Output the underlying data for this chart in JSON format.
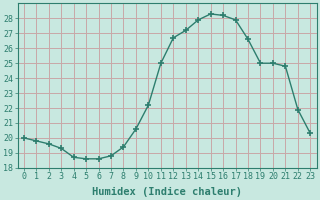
{
  "x": [
    0,
    1,
    2,
    3,
    4,
    5,
    6,
    7,
    8,
    9,
    10,
    11,
    12,
    13,
    14,
    15,
    16,
    17,
    18,
    19,
    20,
    21,
    22,
    23
  ],
  "y": [
    20.0,
    19.8,
    19.6,
    19.3,
    18.7,
    18.6,
    18.6,
    18.8,
    19.4,
    20.6,
    22.2,
    25.0,
    26.7,
    27.2,
    27.9,
    28.3,
    28.2,
    27.9,
    26.6,
    25.0,
    25.0,
    24.8,
    21.9,
    20.3
  ],
  "line_color": "#2d7e6e",
  "marker": "+",
  "marker_size": 4.0,
  "marker_ew": 1.2,
  "line_width": 1.0,
  "bg_color": "#c8e8e0",
  "grid_color": "#c8a8a8",
  "xlabel": "Humidex (Indice chaleur)",
  "xlim": [
    -0.5,
    23.5
  ],
  "ylim": [
    18,
    29
  ],
  "yticks": [
    18,
    19,
    20,
    21,
    22,
    23,
    24,
    25,
    26,
    27,
    28
  ],
  "xticks": [
    0,
    1,
    2,
    3,
    4,
    5,
    6,
    7,
    8,
    9,
    10,
    11,
    12,
    13,
    14,
    15,
    16,
    17,
    18,
    19,
    20,
    21,
    22,
    23
  ],
  "xtick_labels": [
    "0",
    "1",
    "2",
    "3",
    "4",
    "5",
    "6",
    "7",
    "8",
    "9",
    "10",
    "11",
    "12",
    "13",
    "14",
    "15",
    "16",
    "17",
    "18",
    "19",
    "20",
    "21",
    "22",
    "23"
  ],
  "tick_color": "#2d7e6e",
  "font_color": "#2d7e6e",
  "xlabel_fontsize": 7.5,
  "tick_fontsize": 6.0,
  "spine_color": "#2d7e6e"
}
